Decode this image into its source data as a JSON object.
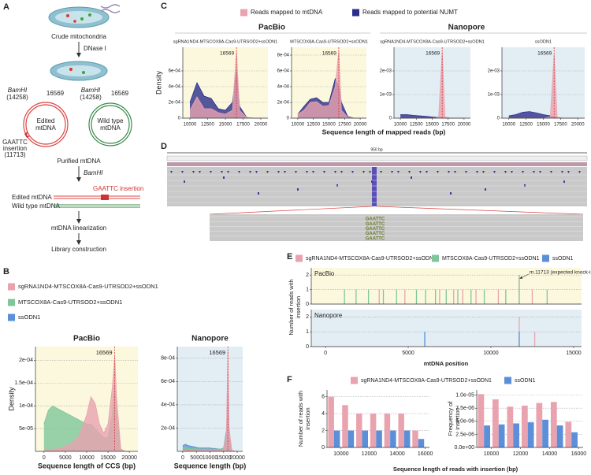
{
  "diagram": {
    "label": "A",
    "crude": "Crude mitochondria",
    "dnase": "DNase I",
    "bamhi_edited": [
      "BamHI",
      "(14258)"
    ],
    "site_edited": "16569",
    "bamhi_wild": [
      "BamHI",
      "(14258)"
    ],
    "site_wild": "16569",
    "edited": [
      "Edited",
      "mtDNA"
    ],
    "wild": [
      "Wild type",
      "mtDNA"
    ],
    "insertion": [
      "GAATTC",
      "insertion",
      "(11713)"
    ],
    "purified": "Purified mtDNA",
    "digest": "BamHI",
    "insert_label": "GAATTC  insertion",
    "edited_linear": "Edited mtDNA",
    "wild_linear": "Wild type mtDNA",
    "linearization": "mtDNA linearization",
    "library": "Library construction"
  },
  "browser": {
    "label": "D",
    "scale": "950 bp",
    "insert_rows": [
      "GAATTC",
      "GAATTC",
      "GAATTC",
      "GAATTC",
      "GAATTC"
    ]
  },
  "chart_data": [
    {
      "type": "area",
      "label": "B",
      "series": [
        {
          "name": "sgRNA1ND4-MTSCOX8A-Cas9-UTRSOD2+ssODN1",
          "color": "#e9a3af"
        },
        {
          "name": "MTSCOX8A-Cas9-UTRSOD2+ssODN1",
          "color": "#7fc79b"
        },
        {
          "name": "ssODN1",
          "color": "#5b8fd9"
        }
      ],
      "panels": [
        {
          "title": "PacBio",
          "xlabel": "Sequence length of CCS (bp)",
          "ylabel": "Density",
          "background": "#fbf8dd",
          "grid": true,
          "x": [
            0,
            1000,
            2000,
            4000,
            6000,
            8000,
            10000,
            11000,
            12000,
            13000,
            14000,
            15000,
            16000,
            16569,
            17000,
            18000,
            19000,
            20000
          ],
          "series": [
            {
              "values": [
                2e-06,
                3e-06,
                4e-06,
                8e-06,
                1.5e-05,
                3e-05,
                8e-05,
                0.00012,
                0.000105,
                6e-05,
                4e-05,
                6e-05,
                0.00014,
                0.00021,
                0.00012,
                5e-06,
                0,
                0
              ]
            },
            {
              "values": [
                6e-05,
                9e-05,
                0.0001,
                9e-05,
                8e-05,
                7e-05,
                6e-05,
                6e-05,
                5e-05,
                4e-05,
                3e-05,
                3e-05,
                8e-05,
                0.00015,
                8e-05,
                5e-06,
                0,
                0
              ]
            },
            null
          ],
          "xlim": [
            -2000,
            22000
          ],
          "ylim": [
            0,
            0.00023
          ],
          "xticks": [
            0,
            5000,
            10000,
            15000,
            20000
          ],
          "yticks": [
            {
              "value": 5e-05,
              "label": "5e-05"
            },
            {
              "value": 0.0001,
              "label": "1e-04"
            },
            {
              "value": 0.00015,
              "label": "1.5e-04"
            },
            {
              "value": 0.0002,
              "label": "2e-04"
            }
          ],
          "vline": 16569
        },
        {
          "title": "Nanopore",
          "xlabel": "Sequence length (bp)",
          "background": "#e3edf4",
          "grid": true,
          "x": [
            0,
            1000,
            2000,
            4000,
            6000,
            8000,
            10000,
            11000,
            12000,
            13000,
            14000,
            15000,
            16000,
            16569,
            17000,
            18000,
            19000,
            20000
          ],
          "series": [
            {
              "values": [
                1e-05,
                1e-05,
                1e-05,
                1e-05,
                1e-05,
                1e-05,
                1e-05,
                1e-05,
                1e-05,
                1e-05,
                1e-05,
                2e-05,
                0.00015,
                0.00086,
                0.0002,
                1e-05,
                0,
                0
              ]
            },
            {
              "values": [
                3e-05,
                4e-05,
                3e-05,
                2.5e-05,
                2e-05,
                2e-05,
                2e-05,
                2e-05,
                2e-05,
                2e-05,
                2e-05,
                3e-05,
                0.00015,
                0.0004,
                0.0001,
                1e-05,
                0,
                0
              ]
            },
            {
              "values": [
                5e-05,
                6e-05,
                5e-05,
                4e-05,
                3e-05,
                3e-05,
                3e-05,
                2.5e-05,
                2.5e-05,
                2e-05,
                2e-05,
                3e-05,
                0.00018,
                0.0005,
                0.00012,
                1e-05,
                0,
                0
              ]
            }
          ],
          "xlim": [
            -2000,
            22000
          ],
          "ylim": [
            0,
            0.0009
          ],
          "xticks": [
            0,
            5000,
            10000,
            15000,
            20000
          ],
          "yticks": [
            {
              "value": 0.0002,
              "label": "2e-04"
            },
            {
              "value": 0.0004,
              "label": "4e-04"
            },
            {
              "value": 0.0006,
              "label": "6e-04"
            },
            {
              "value": 0.0008,
              "label": "8e-04"
            }
          ],
          "vline": 16569
        }
      ]
    },
    {
      "type": "area",
      "label": "C",
      "series": [
        {
          "name": "Reads mapped to mtDNA",
          "color": "#e9a3af"
        },
        {
          "name": "Reads mapped to potential NUMT",
          "color": "#2c2e8c"
        }
      ],
      "groups": [
        "PacBio",
        "Nanopore"
      ],
      "xlabel": "Sequence length of mapped reads (bp)",
      "panels": [
        {
          "subtitle": "sgRNA1ND4-MTSCOX8A-Cas9-UTRSOD2+ssODN1",
          "ylabel": "Density",
          "background": "#fbf8dd",
          "grid": true,
          "x": [
            10000,
            11000,
            12000,
            13000,
            14000,
            15000,
            16000,
            16569,
            17000,
            18000,
            19000,
            20000
          ],
          "series": [
            {
              "values": [
                0.0001,
                0.00027,
                0.00012,
                0.00012,
                7e-05,
                5e-05,
                0.0001,
                0.00085,
                0.0001,
                1e-05,
                0,
                0
              ]
            },
            {
              "values": [
                0.0002,
                0.00045,
                0.00028,
                0.00025,
                0.00012,
                0.0001,
                0.0002,
                0.0006,
                0.00015,
                1e-05,
                0,
                0
              ]
            }
          ],
          "xlim": [
            9000,
            21000
          ],
          "ylim": [
            0,
            0.0009
          ],
          "xticks": [
            10000,
            12500,
            15000,
            17500,
            20000
          ],
          "yticks": [
            0,
            {
              "value": 0.0002,
              "label": "2e-04"
            },
            {
              "value": 0.0004,
              "label": "4e-04"
            },
            {
              "value": 0.0006,
              "label": "6e-04"
            }
          ],
          "vline": 16569
        },
        {
          "subtitle": "MTSCOX8A-Cas9-UTRSOD2+ssODN1",
          "background": "#fbf8dd",
          "grid": true,
          "x": [
            10000,
            11000,
            12000,
            13000,
            14000,
            15000,
            16000,
            16569,
            17000,
            18000,
            19000,
            20000
          ],
          "series": [
            {
              "values": [
                5e-05,
                0.0001,
                0.0002,
                0.00021,
                0.00015,
                0.00016,
                0.0004,
                0.00085,
                0.0001,
                1e-05,
                0,
                0
              ]
            },
            {
              "values": [
                5e-05,
                0.00015,
                0.00024,
                0.00026,
                0.0002,
                0.0002,
                0.0005,
                0.0004,
                0.0002,
                2e-05,
                0,
                0
              ]
            }
          ],
          "xlim": [
            9000,
            21000
          ],
          "ylim": [
            0,
            0.0009
          ],
          "xticks": [
            10000,
            12500,
            15000,
            17500,
            20000
          ],
          "yticks": [
            0,
            {
              "value": 0.0002,
              "label": "2e-04"
            },
            {
              "value": 0.0004,
              "label": "4e-04"
            },
            {
              "value": 0.0006,
              "label": "6e-04"
            },
            {
              "value": 0.0008,
              "label": "8e-04"
            }
          ],
          "vline": 16569
        },
        {
          "subtitle": "sgRNA1ND4-MTSCOX8A-Cas9-UTRSOD2+ssODN1",
          "background": "#e3edf4",
          "grid": true,
          "x": [
            10000,
            11000,
            12000,
            13000,
            14000,
            15000,
            16000,
            16569,
            17000,
            18000,
            19000,
            20000
          ],
          "series": [
            {
              "values": [
                0,
                0,
                0,
                0,
                0,
                0,
                2e-05,
                0.0028,
                5e-05,
                0,
                0,
                0
              ]
            },
            {
              "values": [
                0.00015,
                0.00015,
                0.00012,
                0.0001,
                8e-05,
                5e-05,
                3e-05,
                2e-05,
                1e-05,
                0,
                0,
                0
              ]
            }
          ],
          "xlim": [
            9000,
            21000
          ],
          "ylim": [
            0,
            0.003
          ],
          "xticks": [
            10000,
            12500,
            15000,
            17500,
            20000
          ],
          "yticks": [
            0,
            {
              "value": 0.001,
              "label": "1e-03"
            },
            {
              "value": 0.002,
              "label": "2e-03"
            }
          ],
          "vline": 16569
        },
        {
          "subtitle": "ssODN1",
          "background": "#e3edf4",
          "grid": true,
          "x": [
            10000,
            11000,
            12000,
            13000,
            14000,
            15000,
            16000,
            16569,
            17000,
            18000,
            19000,
            20000
          ],
          "series": [
            {
              "values": [
                0,
                0,
                0,
                0,
                0,
                0,
                5e-05,
                0.0027,
                5e-05,
                0,
                0,
                0
              ]
            },
            {
              "values": [
                0.0001,
                0.00015,
                0.00025,
                0.00028,
                0.00022,
                0.00015,
                0.0001,
                5e-05,
                2e-05,
                0,
                0,
                0
              ]
            }
          ],
          "xlim": [
            9000,
            21000
          ],
          "ylim": [
            0,
            0.003
          ],
          "xticks": [
            10000,
            12500,
            15000,
            17500,
            20000
          ],
          "yticks": [
            0,
            {
              "value": 0.001,
              "label": "1e-03"
            },
            {
              "value": 0.002,
              "label": "2e-03"
            }
          ],
          "vline": 16569
        }
      ]
    },
    {
      "type": "stem",
      "label": "E",
      "series": [
        {
          "name": "sgRNA1ND4-MTSCOX8A-Cas9-UTRSOD2+ssODN1",
          "color": "#e9a3af"
        },
        {
          "name": "MTSCOX8A-Cas9-UTRSOD2+ssODN1",
          "color": "#7fc79b"
        },
        {
          "name": "ssODN1",
          "color": "#5b8fd9"
        }
      ],
      "ylabel": [
        "Number of reads with",
        "insertion"
      ],
      "xlabel": "mtDNA position",
      "annotation": "m.11713 (expected knock-in site)",
      "xlim": [
        -860,
        15480
      ],
      "xticks": [
        0,
        5000,
        10000,
        15000
      ],
      "panels": [
        {
          "title": "PacBio",
          "background": "#fbf8dd",
          "ylim": [
            0,
            2.5
          ],
          "yticks": [
            0,
            1,
            2
          ],
          "series": [
            {
              "x": [
                3250,
                4800,
                6900,
                7750,
                8300,
                9100,
                10450,
                11713,
                12500
              ],
              "values": [
                1,
                1,
                1,
                1,
                1,
                1,
                1,
                2,
                1
              ]
            },
            {
              "x": [
                1150,
                1850,
                2600,
                3500,
                4300,
                5500,
                6050,
                6650,
                7300,
                8000,
                8800,
                9600,
                10900,
                11713,
                13400
              ],
              "values": [
                1,
                1,
                1,
                1,
                1,
                1,
                1,
                1,
                1,
                1,
                1,
                1,
                1,
                2,
                1
              ]
            },
            {
              "x": [],
              "values": []
            }
          ]
        },
        {
          "title": "Nanopore",
          "background": "#e3edf4",
          "ylim": [
            0,
            2.5
          ],
          "yticks": [
            0,
            1,
            2
          ],
          "series": [
            {
              "x": [
                11713,
                12650
              ],
              "values": [
                2,
                1
              ]
            },
            {
              "x": [],
              "values": []
            },
            {
              "x": [
                6000,
                11713
              ],
              "values": [
                1,
                1
              ]
            }
          ]
        }
      ]
    },
    {
      "type": "bar",
      "label": "F",
      "series": [
        {
          "name": "sgRNA1ND4-MTSCOX8A-Cas9-UTRSOD2+ssODN1",
          "color": "#e9a3af"
        },
        {
          "name": "ssODN1",
          "color": "#5b8fd9"
        }
      ],
      "x": [
        9500,
        10500,
        11500,
        12500,
        13500,
        14500,
        15500
      ],
      "xlim": [
        9000,
        16300
      ],
      "xticks": [
        10000,
        12000,
        14000,
        16000
      ],
      "xlabel": "Sequence length of reads with insertion (bp)",
      "panels": [
        {
          "ylabel": [
            "Number of reads with",
            "insertion"
          ],
          "ylim": [
            0,
            6.8
          ],
          "yticks": [
            0,
            2,
            4,
            6
          ],
          "series": [
            {
              "values": [
                6,
                5,
                4,
                4,
                4,
                4,
                2
              ]
            },
            {
              "values": [
                2,
                2,
                2,
                2,
                2,
                2,
                1
              ]
            }
          ]
        },
        {
          "ylabel": [
            "Frequency of",
            "insertion"
          ],
          "ylim": [
            0,
            1.1e-05
          ],
          "yticks": [
            {
              "value": 0,
              "label": "0.0e+00"
            },
            {
              "value": 2.5e-06,
              "label": "2.5e-06"
            },
            {
              "value": 5e-06,
              "label": "5.0e-06"
            },
            {
              "value": 7.5e-06,
              "label": "7.5e-06"
            },
            {
              "value": 1e-05,
              "label": "1.0e-05"
            }
          ],
          "series": [
            {
              "values": [
                1.02e-05,
                9.2e-06,
                7.8e-06,
                8e-06,
                8.5e-06,
                8.7e-06,
                4.9e-06
              ]
            },
            {
              "values": [
                4.2e-06,
                4.4e-06,
                4.6e-06,
                4.8e-06,
                5.3e-06,
                4.2e-06,
                2.9e-06
              ]
            }
          ]
        }
      ]
    }
  ]
}
